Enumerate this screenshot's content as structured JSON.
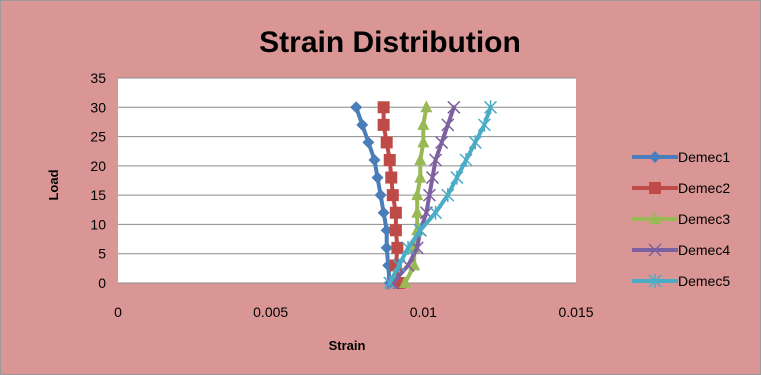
{
  "chart_data": {
    "type": "line",
    "title": "Strain Distribution",
    "xlabel": "Strain",
    "ylabel": "Load",
    "xlim": [
      0,
      0.015
    ],
    "ylim": [
      0,
      35
    ],
    "x_ticks": [
      "0",
      "0.005",
      "0.01",
      "0.015"
    ],
    "y_ticks": [
      "0",
      "5",
      "10",
      "15",
      "20",
      "25",
      "30",
      "35"
    ],
    "grid": "horizontal",
    "legend_position": "right",
    "series": [
      {
        "name": "Demec1",
        "color": "#4a7ebb",
        "marker": "diamond",
        "y": [
          0,
          3,
          6,
          9,
          12,
          15,
          18,
          21,
          24,
          27,
          30
        ],
        "x": [
          0.0089,
          0.00885,
          0.0088,
          0.0088,
          0.0087,
          0.0086,
          0.0085,
          0.0084,
          0.0082,
          0.008,
          0.0078
        ]
      },
      {
        "name": "Demec2",
        "color": "#be4b48",
        "marker": "square",
        "y": [
          0,
          3,
          6,
          9,
          12,
          15,
          18,
          21,
          24,
          27,
          30
        ],
        "x": [
          0.0092,
          0.0091,
          0.00915,
          0.0091,
          0.0091,
          0.009,
          0.00895,
          0.0089,
          0.0088,
          0.0087,
          0.0087
        ]
      },
      {
        "name": "Demec3",
        "color": "#98b954",
        "marker": "triangle",
        "y": [
          0,
          3,
          6,
          9,
          12,
          15,
          18,
          21,
          24,
          27,
          30
        ],
        "x": [
          0.0094,
          0.0097,
          0.0097,
          0.0098,
          0.0098,
          0.0098,
          0.0099,
          0.0099,
          0.01,
          0.01,
          0.0101
        ]
      },
      {
        "name": "Demec4",
        "color": "#7d60a0",
        "marker": "x",
        "y": [
          0,
          3,
          6,
          9,
          12,
          15,
          18,
          21,
          24,
          27,
          30
        ],
        "x": [
          0.009,
          0.0095,
          0.0098,
          0.0099,
          0.0101,
          0.0102,
          0.0103,
          0.0104,
          0.0106,
          0.0108,
          0.011
        ]
      },
      {
        "name": "Demec5",
        "color": "#4bacc6",
        "marker": "star",
        "y": [
          0,
          3,
          6,
          9,
          12,
          15,
          18,
          21,
          24,
          27,
          30
        ],
        "x": [
          0.0089,
          0.0092,
          0.0095,
          0.0099,
          0.0104,
          0.0108,
          0.0111,
          0.0114,
          0.0117,
          0.012,
          0.0122
        ]
      }
    ]
  }
}
